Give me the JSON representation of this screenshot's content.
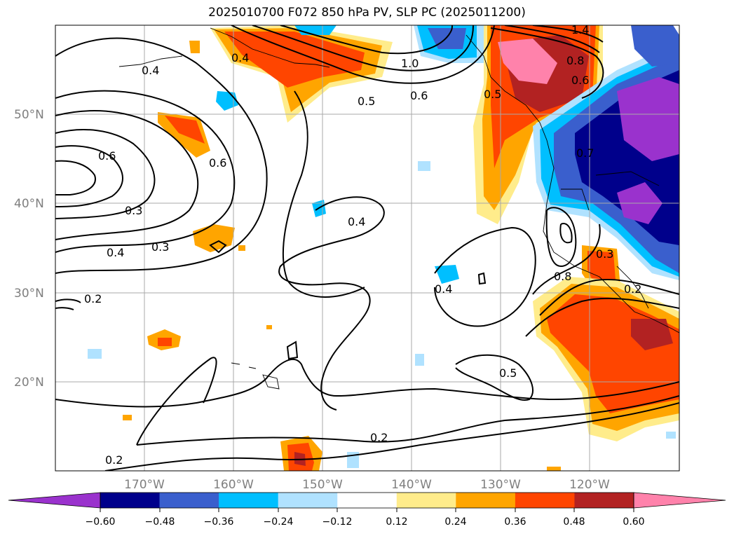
{
  "title": "2025010700 F072 850 hPa PV, SLP PC (2025011200)",
  "lat_labels": [
    "50°N",
    "40°N",
    "30°N",
    "20°N"
  ],
  "lon_labels": [
    "170°W",
    "160°W",
    "150°W",
    "140°W",
    "130°W",
    "120°W"
  ],
  "colorbar": {
    "labels": [
      "−0.60",
      "−0.48",
      "−0.36",
      "−0.24",
      "−0.12",
      "0.12",
      "0.24",
      "0.36",
      "0.48",
      "0.60"
    ],
    "colors": [
      "#9a32cd",
      "#00008b",
      "#3a5fcd",
      "#00bfff",
      "#b0e2ff",
      "#ffffff",
      "#ffec8b",
      "#ffa500",
      "#ff4500",
      "#b22222",
      "#ff82ab"
    ]
  },
  "contour_labels": [
    "0.4",
    "0.4",
    "1.0",
    "0.6",
    "0.5",
    "1.4",
    "0.8",
    "0.7",
    "0.6",
    "0.5",
    "0.6",
    "0.4",
    "0.3",
    "0.4",
    "0.3",
    "0.2",
    "0.4",
    "0.5",
    "0.2",
    "0.2",
    "0.8",
    "0.6",
    "0.2",
    "0.3"
  ],
  "colors": {
    "shading_blue_dark": "#00008b",
    "shading_blue_mid": "#3a5fcd",
    "shading_orange": "#ffa500",
    "shading_red": "#ff4500"
  }
}
